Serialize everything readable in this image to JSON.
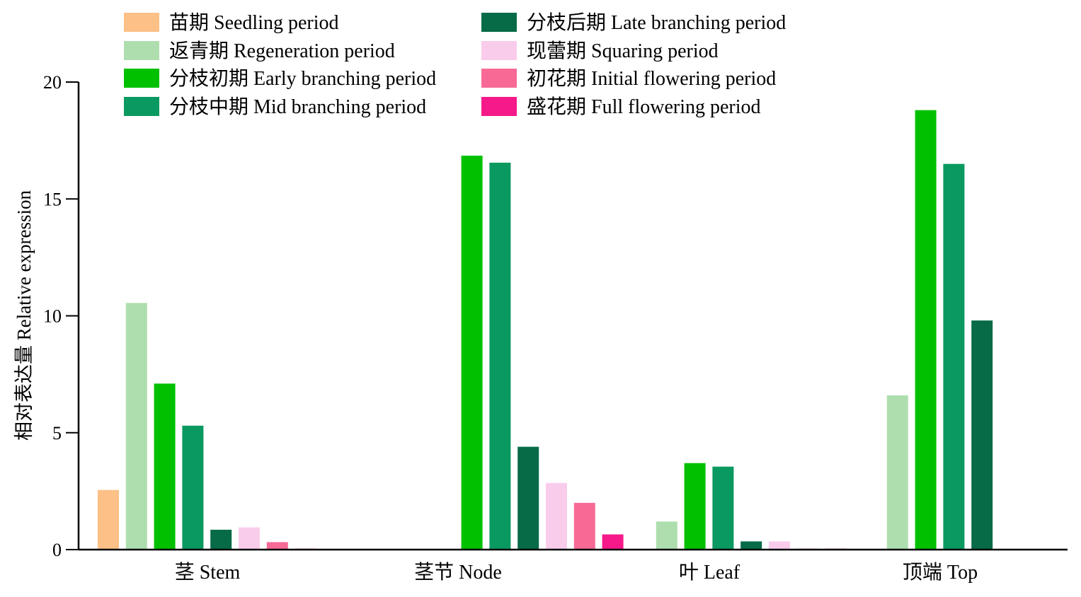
{
  "chart_data": {
    "type": "bar",
    "ylabel": "相对表达量 Relative expression",
    "xlabel": "",
    "ylim": [
      0,
      20
    ],
    "yticks": [
      0,
      5,
      10,
      15,
      20
    ],
    "legend_position": "top",
    "categories": [
      "茎 Stem",
      "茎节 Node",
      "叶 Leaf",
      "顶端 Top"
    ],
    "series": [
      {
        "name": "苗期 Seedling period",
        "color": "#FDC086",
        "values": [
          2.55,
          0,
          0,
          0
        ]
      },
      {
        "name": "返青期 Regeneration period",
        "color": "#AEDEAE",
        "values": [
          10.55,
          0,
          1.2,
          6.6
        ]
      },
      {
        "name": "分枝初期 Early branching period",
        "color": "#00C000",
        "values": [
          7.1,
          16.85,
          3.7,
          18.8
        ]
      },
      {
        "name": "分枝中期 Mid branching period",
        "color": "#0A9960",
        "values": [
          5.3,
          16.55,
          3.55,
          16.5
        ]
      },
      {
        "name": "分枝后期 Late branching period",
        "color": "#076B47",
        "values": [
          0.85,
          4.4,
          0.35,
          9.8
        ]
      },
      {
        "name": "现蕾期 Squaring period",
        "color": "#F9CCEC",
        "values": [
          0.95,
          2.85,
          0.35,
          0
        ]
      },
      {
        "name": "初花期 Initial flowering period",
        "color": "#F76A96",
        "values": [
          0.32,
          2.0,
          0.04,
          0
        ]
      },
      {
        "name": "盛花期 Full flowering period",
        "color": "#F5198A",
        "values": [
          0.04,
          0.65,
          0.04,
          0
        ]
      }
    ]
  }
}
